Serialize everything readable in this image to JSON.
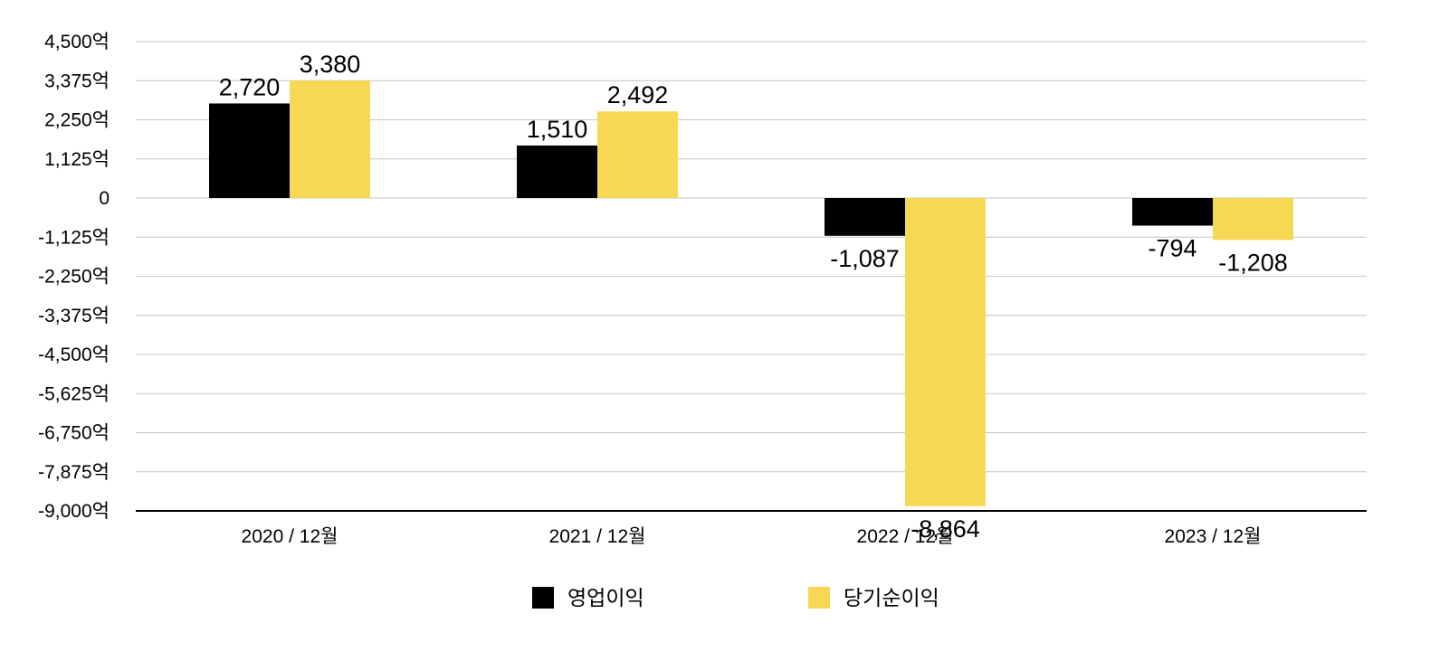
{
  "chart_data": {
    "type": "bar",
    "categories": [
      "2020 / 12월",
      "2021 / 12월",
      "2022 / 12월",
      "2023 / 12월"
    ],
    "series": [
      {
        "name": "영업이익",
        "values": [
          2720,
          1510,
          -1087,
          -794
        ],
        "labels": [
          "2,720",
          "1,510",
          "-1,087",
          "-794"
        ],
        "color": "#000000"
      },
      {
        "name": "당기순이익",
        "values": [
          3380,
          2492,
          -8864,
          -1208
        ],
        "labels": [
          "3,380",
          "2,492",
          "-8,864",
          "-1,208"
        ],
        "color": "#f7d854"
      }
    ],
    "yticks": [
      4500,
      3375,
      2250,
      1125,
      0,
      -1125,
      -2250,
      -3375,
      -4500,
      -5625,
      -6750,
      -7875,
      -9000
    ],
    "ytick_labels": [
      "4,500억",
      "3,375억",
      "2,250억",
      "1,125억",
      "0",
      "-1,125억",
      "-2,250억",
      "-3,375억",
      "-4,500억",
      "-5,625억",
      "-6,750억",
      "-7,875억",
      "-9,000억"
    ],
    "ylim": [
      -9000,
      4500
    ],
    "grid": true,
    "legend_position": "bottom"
  }
}
